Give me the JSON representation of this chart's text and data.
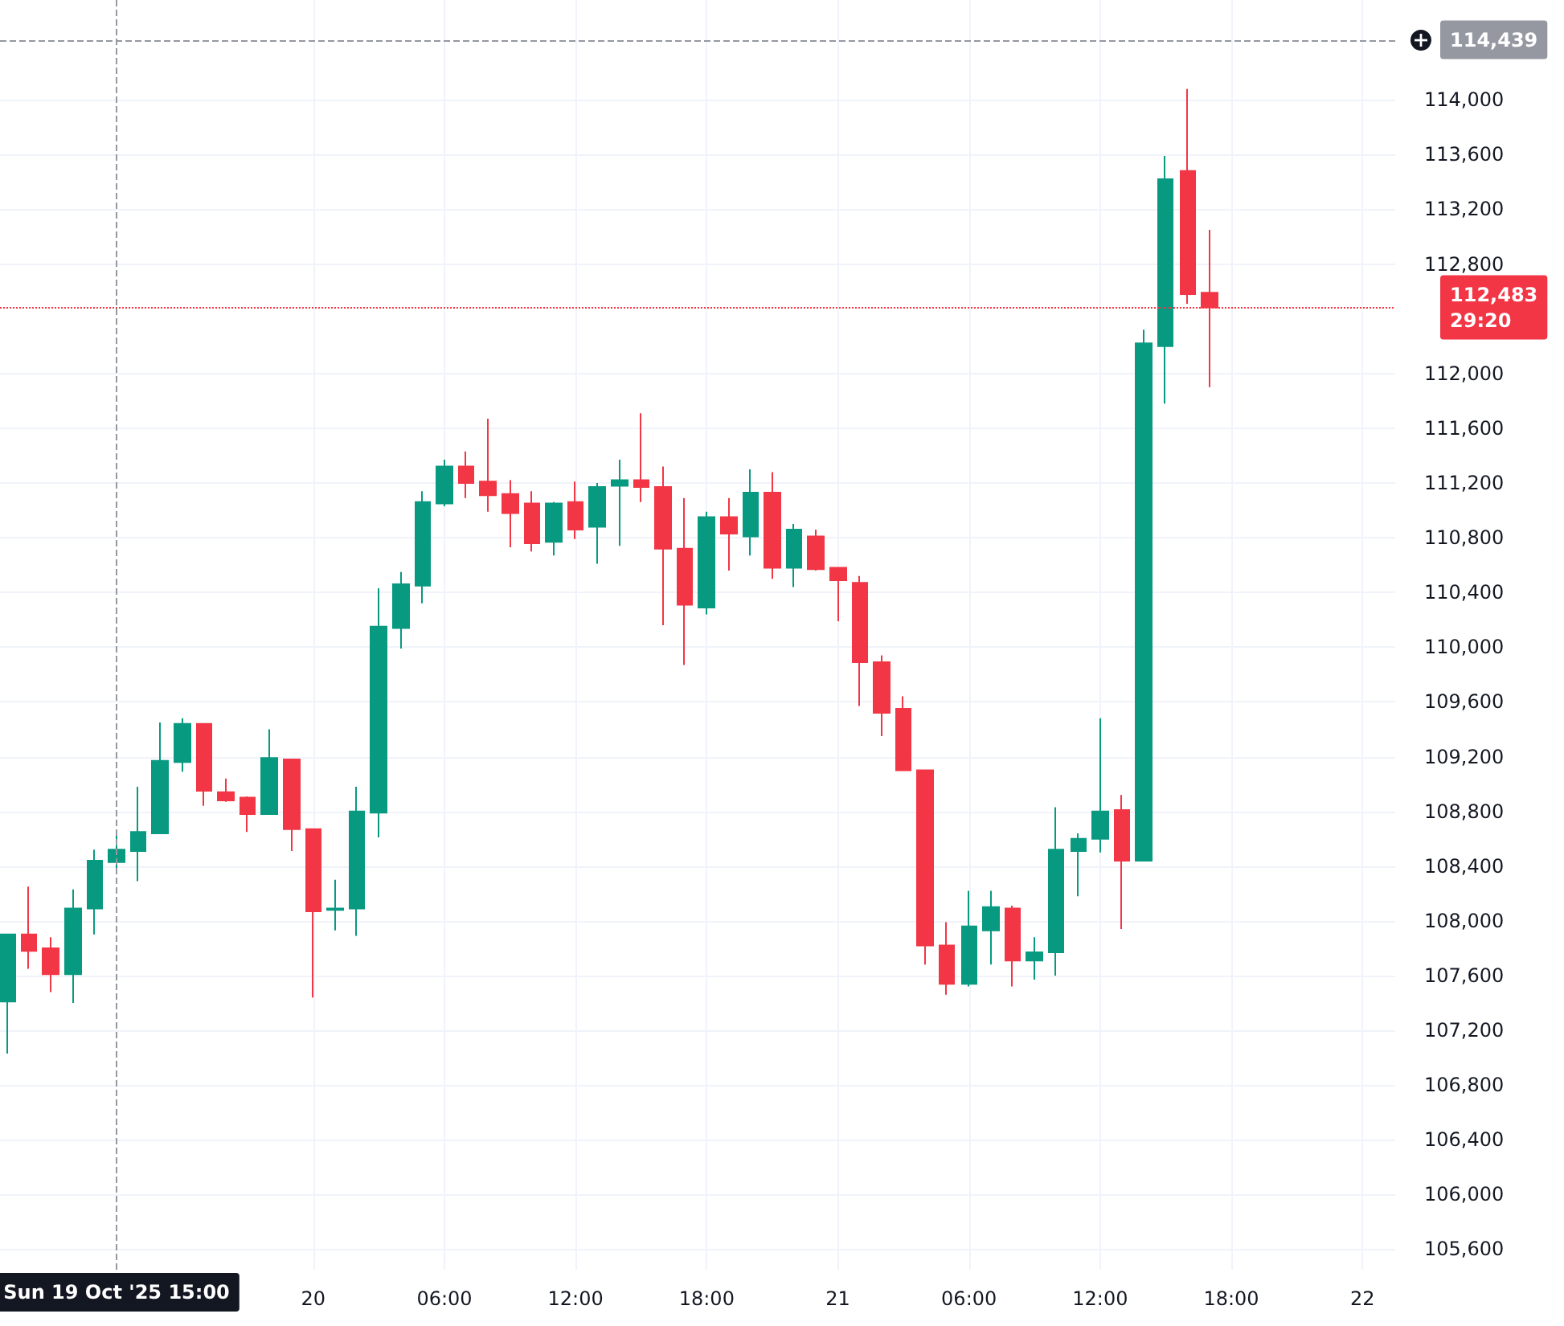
{
  "chart_data": {
    "type": "candlestick",
    "x": [
      "2025-10-19T10:00",
      "2025-10-19T11:00",
      "2025-10-19T12:00",
      "2025-10-19T13:00",
      "2025-10-19T14:00",
      "2025-10-19T15:00",
      "2025-10-19T16:00",
      "2025-10-19T17:00",
      "2025-10-19T18:00",
      "2025-10-19T19:00",
      "2025-10-19T20:00",
      "2025-10-19T21:00",
      "2025-10-19T22:00",
      "2025-10-19T23:00",
      "2025-10-20T00:00",
      "2025-10-20T01:00",
      "2025-10-20T02:00",
      "2025-10-20T03:00",
      "2025-10-20T04:00",
      "2025-10-20T05:00",
      "2025-10-20T06:00",
      "2025-10-20T07:00",
      "2025-10-20T08:00",
      "2025-10-20T09:00",
      "2025-10-20T10:00",
      "2025-10-20T11:00",
      "2025-10-20T12:00",
      "2025-10-20T13:00",
      "2025-10-20T14:00",
      "2025-10-20T15:00",
      "2025-10-20T16:00",
      "2025-10-20T17:00",
      "2025-10-20T18:00",
      "2025-10-20T19:00",
      "2025-10-20T20:00",
      "2025-10-20T21:00",
      "2025-10-20T22:00",
      "2025-10-20T23:00",
      "2025-10-21T00:00",
      "2025-10-21T01:00",
      "2025-10-21T02:00",
      "2025-10-21T03:00",
      "2025-10-21T04:00",
      "2025-10-21T05:00",
      "2025-10-21T06:00",
      "2025-10-21T07:00",
      "2025-10-21T08:00",
      "2025-10-21T09:00",
      "2025-10-21T10:00",
      "2025-10-21T11:00",
      "2025-10-21T12:00",
      "2025-10-21T13:00",
      "2025-10-21T14:00",
      "2025-10-21T15:00",
      "2025-10-21T16:00",
      "2025-10-21T17:00"
    ],
    "ohlc": [
      [
        107410,
        107900,
        107030,
        107900
      ],
      [
        107900,
        108250,
        107650,
        107780
      ],
      [
        107800,
        107880,
        107480,
        107610
      ],
      [
        107610,
        108230,
        107400,
        108090
      ],
      [
        108090,
        108520,
        107900,
        108440
      ],
      [
        108430,
        108640,
        108360,
        108520
      ],
      [
        108510,
        108980,
        108290,
        108650
      ],
      [
        108640,
        109450,
        108640,
        109170
      ],
      [
        109160,
        109480,
        109090,
        109440
      ],
      [
        109440,
        109440,
        108840,
        108950
      ],
      [
        108940,
        109040,
        108870,
        108880
      ],
      [
        108900,
        108910,
        108650,
        108780
      ],
      [
        108780,
        109400,
        108780,
        109190
      ],
      [
        109180,
        109180,
        108510,
        108670
      ],
      [
        108670,
        108670,
        107440,
        108070
      ],
      [
        108080,
        108300,
        107930,
        108090
      ],
      [
        108090,
        108980,
        107890,
        108800
      ],
      [
        108790,
        110430,
        108610,
        110150
      ],
      [
        110140,
        110550,
        109990,
        110460
      ],
      [
        110450,
        111140,
        110320,
        111060
      ],
      [
        111050,
        111370,
        111030,
        111320
      ],
      [
        111320,
        111430,
        111090,
        111200
      ],
      [
        111210,
        111670,
        110990,
        111110
      ],
      [
        111120,
        111220,
        110730,
        110980
      ],
      [
        111050,
        111140,
        110700,
        110760
      ],
      [
        110770,
        111060,
        110670,
        111050
      ],
      [
        111060,
        111210,
        110790,
        110860
      ],
      [
        110880,
        111200,
        110610,
        111170
      ],
      [
        111180,
        111370,
        110740,
        111220
      ],
      [
        111220,
        111710,
        111060,
        111170
      ],
      [
        111170,
        111320,
        110160,
        110720
      ],
      [
        110720,
        111090,
        109870,
        110310
      ],
      [
        110290,
        110990,
        110240,
        110950
      ],
      [
        110950,
        111090,
        110560,
        110830
      ],
      [
        110810,
        111300,
        110670,
        111130
      ],
      [
        111130,
        111280,
        110500,
        110580
      ],
      [
        110580,
        110900,
        110440,
        110860
      ],
      [
        110810,
        110860,
        110560,
        110570
      ],
      [
        110580,
        110580,
        110190,
        110490
      ],
      [
        110470,
        110520,
        109570,
        109890
      ],
      [
        109890,
        109940,
        109350,
        109520
      ],
      [
        109550,
        109640,
        109100,
        109100
      ],
      [
        109100,
        109100,
        107680,
        107820
      ],
      [
        107820,
        107990,
        107460,
        107540
      ],
      [
        107540,
        108220,
        107520,
        107960
      ],
      [
        107930,
        108220,
        107680,
        108100
      ],
      [
        108090,
        108110,
        107520,
        107710
      ],
      [
        107710,
        107880,
        107570,
        107770
      ],
      [
        107770,
        108830,
        107600,
        108520
      ],
      [
        108510,
        108640,
        108180,
        108600
      ],
      [
        108600,
        109480,
        108500,
        108800
      ],
      [
        108810,
        108920,
        107940,
        108440
      ],
      [
        108440,
        112320,
        108440,
        112220
      ],
      [
        112200,
        113590,
        111780,
        113420
      ],
      [
        113480,
        114080,
        112510,
        112580
      ],
      [
        112590,
        113050,
        111900,
        112483
      ]
    ],
    "colors": [
      "#089981",
      "#f23645",
      "#f23645",
      "#089981",
      "#089981",
      "#089981",
      "#089981",
      "#089981",
      "#089981",
      "#f23645",
      "#f23645",
      "#f23645",
      "#089981",
      "#f23645",
      "#f23645",
      "#089981",
      "#089981",
      "#089981",
      "#089981",
      "#089981",
      "#089981",
      "#f23645",
      "#f23645",
      "#f23645",
      "#f23645",
      "#089981",
      "#f23645",
      "#089981",
      "#089981",
      "#f23645",
      "#f23645",
      "#f23645",
      "#089981",
      "#f23645",
      "#089981",
      "#f23645",
      "#089981",
      "#f23645",
      "#f23645",
      "#f23645",
      "#f23645",
      "#f23645",
      "#f23645",
      "#f23645",
      "#089981",
      "#089981",
      "#f23645",
      "#089981",
      "#089981",
      "#089981",
      "#089981",
      "#f23645",
      "#089981",
      "#089981",
      "#f23645",
      "#f23645"
    ],
    "xlim": [
      "2025-10-19T09:40",
      "2025-10-22T01:30"
    ],
    "xticks": [
      {
        "value": "2025-10-20T00:00",
        "label": "20"
      },
      {
        "value": "2025-10-20T06:00",
        "label": "06:00"
      },
      {
        "value": "2025-10-20T12:00",
        "label": "12:00"
      },
      {
        "value": "2025-10-20T18:00",
        "label": "18:00"
      },
      {
        "value": "2025-10-21T00:00",
        "label": "21"
      },
      {
        "value": "2025-10-21T06:00",
        "label": "06:00"
      },
      {
        "value": "2025-10-21T12:00",
        "label": "12:00"
      },
      {
        "value": "2025-10-21T18:00",
        "label": "18:00"
      },
      {
        "value": "2025-10-22T00:00",
        "label": "22"
      }
    ],
    "ylim": [
      105450,
      114730
    ],
    "yticks": [
      {
        "value": 105600,
        "label": "105,600"
      },
      {
        "value": 106000,
        "label": "106,000"
      },
      {
        "value": 106400,
        "label": "106,400"
      },
      {
        "value": 106800,
        "label": "106,800"
      },
      {
        "value": 107200,
        "label": "107,200"
      },
      {
        "value": 107600,
        "label": "107,600"
      },
      {
        "value": 108000,
        "label": "108,000"
      },
      {
        "value": 108400,
        "label": "108,400"
      },
      {
        "value": 108800,
        "label": "108,800"
      },
      {
        "value": 109200,
        "label": "109,200"
      },
      {
        "value": 109600,
        "label": "109,600"
      },
      {
        "value": 110000,
        "label": "110,000"
      },
      {
        "value": 110400,
        "label": "110,400"
      },
      {
        "value": 110800,
        "label": "110,800"
      },
      {
        "value": 111200,
        "label": "111,200"
      },
      {
        "value": 111600,
        "label": "111,600"
      },
      {
        "value": 112000,
        "label": "112,000"
      },
      {
        "value": 112800,
        "label": "112,800"
      },
      {
        "value": 113200,
        "label": "113,200"
      },
      {
        "value": 113600,
        "label": "113,600"
      },
      {
        "value": 114000,
        "label": "114,000"
      }
    ],
    "ref_lines": [
      {
        "axis": "x",
        "value": "2025-10-19T15:00",
        "label": "Sun 19 Oct '25 15:00",
        "color": "#9598a1",
        "line_style": "dashed"
      },
      {
        "axis": "y",
        "value": 114439,
        "label": "114,439",
        "color": "#9598a1",
        "line_style": "dashed"
      },
      {
        "axis": "y",
        "value": 112483,
        "label": "112,483\n29:20",
        "color": "#f23645",
        "line_style": "dotted"
      }
    ],
    "grid": true
  }
}
